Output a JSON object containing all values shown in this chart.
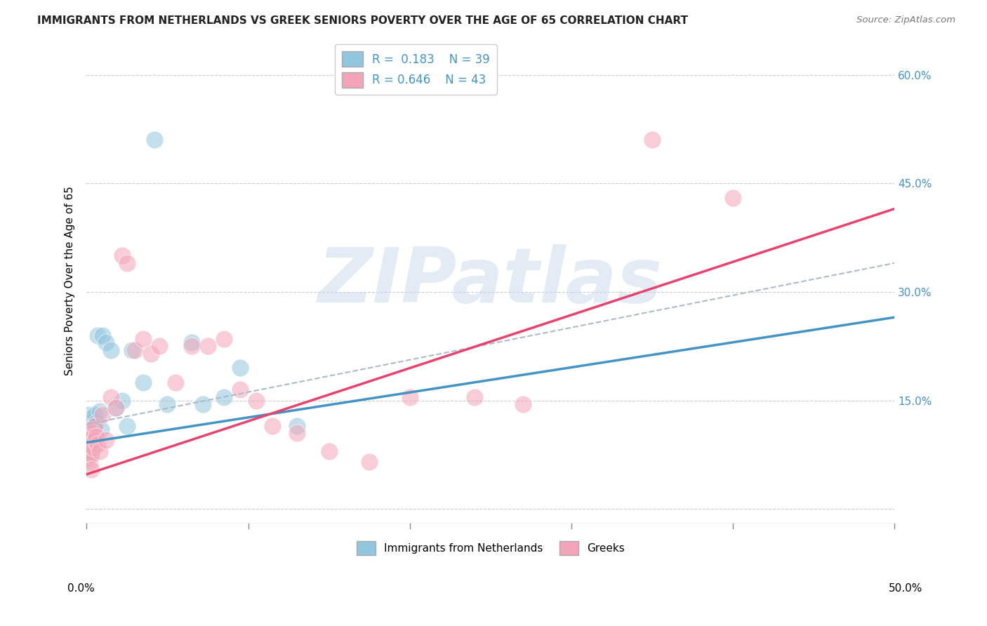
{
  "title": "IMMIGRANTS FROM NETHERLANDS VS GREEK SENIORS POVERTY OVER THE AGE OF 65 CORRELATION CHART",
  "source": "Source: ZipAtlas.com",
  "ylabel": "Seniors Poverty Over the Age of 65",
  "xlim": [
    0.0,
    0.5
  ],
  "ylim": [
    -0.02,
    0.65
  ],
  "yticks": [
    0.0,
    0.15,
    0.3,
    0.45,
    0.6
  ],
  "ytick_labels": [
    "",
    "15.0%",
    "30.0%",
    "45.0%",
    "60.0%"
  ],
  "legend1_R": "0.183",
  "legend1_N": "39",
  "legend2_R": "0.646",
  "legend2_N": "43",
  "blue_color": "#92c5de",
  "pink_color": "#f4a4b8",
  "blue_line_color": "#4393c3",
  "pink_line_color": "#e8436e",
  "watermark_color": "#c8d8ea",
  "watermark": "ZIPatlas",
  "legend_label1": "Immigrants from Netherlands",
  "legend_label2": "Greeks",
  "background_color": "#ffffff",
  "grid_color": "#cccccc",
  "title_color": "#222222",
  "source_color": "#777777",
  "right_tick_color": "#4393c3",
  "blue_x": [
    0.001,
    0.001,
    0.001,
    0.001,
    0.002,
    0.002,
    0.002,
    0.002,
    0.002,
    0.003,
    0.003,
    0.003,
    0.003,
    0.003,
    0.004,
    0.004,
    0.004,
    0.005,
    0.005,
    0.006,
    0.006,
    0.007,
    0.008,
    0.009,
    0.01,
    0.012,
    0.015,
    0.018,
    0.022,
    0.025,
    0.028,
    0.035,
    0.042,
    0.05,
    0.065,
    0.072,
    0.085,
    0.095,
    0.13
  ],
  "blue_y": [
    0.13,
    0.12,
    0.11,
    0.095,
    0.125,
    0.115,
    0.105,
    0.09,
    0.08,
    0.12,
    0.11,
    0.1,
    0.09,
    0.08,
    0.115,
    0.105,
    0.095,
    0.13,
    0.1,
    0.12,
    0.1,
    0.24,
    0.135,
    0.11,
    0.24,
    0.23,
    0.22,
    0.14,
    0.15,
    0.115,
    0.22,
    0.175,
    0.51,
    0.145,
    0.23,
    0.145,
    0.155,
    0.195,
    0.115
  ],
  "pink_x": [
    0.001,
    0.001,
    0.001,
    0.002,
    0.002,
    0.002,
    0.002,
    0.003,
    0.003,
    0.003,
    0.003,
    0.004,
    0.004,
    0.005,
    0.005,
    0.006,
    0.007,
    0.008,
    0.01,
    0.012,
    0.015,
    0.018,
    0.022,
    0.025,
    0.03,
    0.035,
    0.04,
    0.045,
    0.055,
    0.065,
    0.075,
    0.085,
    0.095,
    0.105,
    0.115,
    0.13,
    0.15,
    0.175,
    0.2,
    0.24,
    0.27,
    0.35,
    0.4
  ],
  "pink_y": [
    0.09,
    0.08,
    0.07,
    0.11,
    0.1,
    0.09,
    0.065,
    0.105,
    0.09,
    0.075,
    0.055,
    0.1,
    0.085,
    0.115,
    0.095,
    0.1,
    0.09,
    0.08,
    0.13,
    0.095,
    0.155,
    0.14,
    0.35,
    0.34,
    0.22,
    0.235,
    0.215,
    0.225,
    0.175,
    0.225,
    0.225,
    0.235,
    0.165,
    0.15,
    0.115,
    0.105,
    0.08,
    0.065,
    0.155,
    0.155,
    0.145,
    0.51,
    0.43
  ],
  "blue_line_x0": 0.0,
  "blue_line_x1": 0.5,
  "blue_line_y0": 0.092,
  "blue_line_y1": 0.265,
  "pink_line_x0": 0.0,
  "pink_line_x1": 0.5,
  "pink_line_y0": 0.048,
  "pink_line_y1": 0.415
}
